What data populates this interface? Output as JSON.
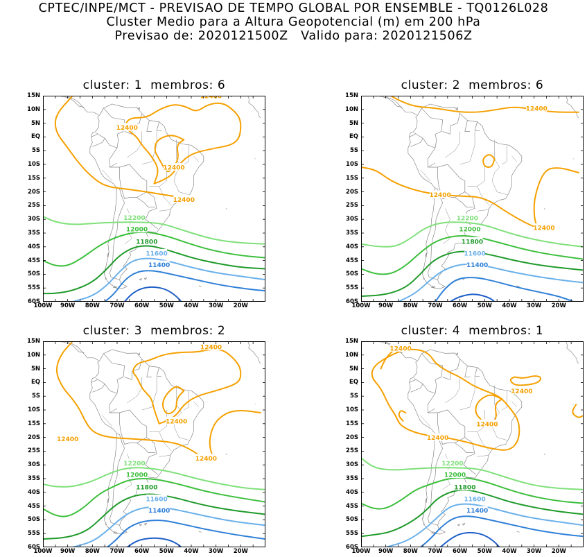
{
  "header": {
    "line1": "CPTEC/INPE/MCT - PREVISAO DE TEMPO GLOBAL POR ENSEMBLE - TQ0126L028",
    "line2": "Cluster Medio para a Altura Geopotencial (m) em 200 hPa",
    "line3": "Previsao de: 2020121500Z   Valido para: 2020121506Z"
  },
  "panels": [
    {
      "title": "cluster: 1  membros: 6"
    },
    {
      "title": "cluster: 2  membros: 6"
    },
    {
      "title": "cluster: 3  membros: 2"
    },
    {
      "title": "cluster: 4  membros: 1"
    }
  ],
  "lat_ticks": [
    "15N",
    "10N",
    "5N",
    "EQ",
    "5S",
    "10S",
    "15S",
    "20S",
    "25S",
    "30S",
    "35S",
    "40S",
    "45S",
    "50S",
    "55S",
    "60S"
  ],
  "lon_ticks": [
    "100W",
    "90W",
    "80W",
    "70W",
    "60W",
    "50W",
    "40W",
    "30W",
    "20W"
  ],
  "contour_labels": [
    "12400",
    "12200",
    "12000",
    "11800",
    "11600",
    "11400"
  ],
  "colors": {
    "c12400": "#f5a000",
    "c12200": "#7fe07a",
    "c12000": "#3cbf3c",
    "c11800": "#1f9a2a",
    "c11600": "#6ab0ea",
    "c11400": "#2f80d8",
    "c11200": "#1f5fc8",
    "land": "#888888"
  }
}
